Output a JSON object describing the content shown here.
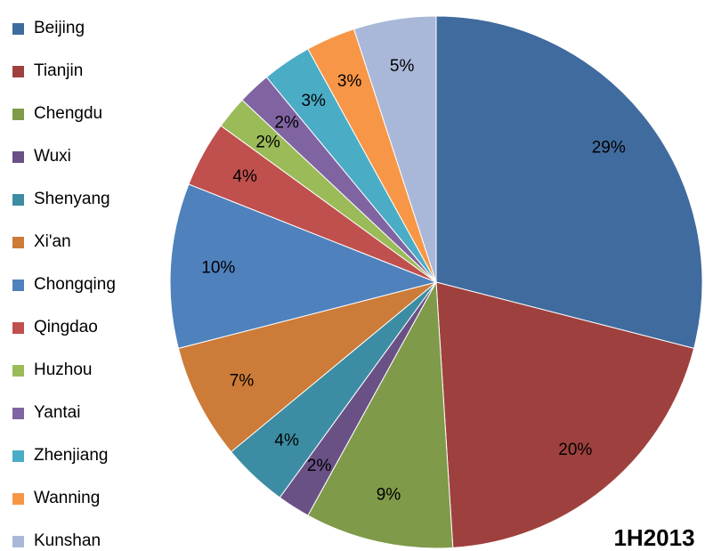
{
  "chart_data": {
    "type": "pie",
    "title": "1H2013",
    "categories": [
      "Beijing",
      "Tianjin",
      "Chengdu",
      "Wuxi",
      "Shenyang",
      "Xi'an",
      "Chongqing",
      "Qingdao",
      "Huzhou",
      "Yantai",
      "Zhenjiang",
      "Wanning",
      "Kunshan"
    ],
    "values": [
      29,
      20,
      9,
      2,
      4,
      7,
      10,
      4,
      2,
      2,
      3,
      3,
      5
    ],
    "value_labels": [
      "29%",
      "20%",
      "9%",
      "2%",
      "4%",
      "7%",
      "10%",
      "4%",
      "2%",
      "2%",
      "3%",
      "3%",
      "5%"
    ],
    "colors": [
      "#406B9E",
      "#9E413E",
      "#7F9A48",
      "#695185",
      "#3C8DA3",
      "#CC7B38",
      "#4F81BD",
      "#C0504D",
      "#9BBB59",
      "#8064A2",
      "#4BACC6",
      "#F79646",
      "#A9B8D9"
    ],
    "legend": "left"
  }
}
